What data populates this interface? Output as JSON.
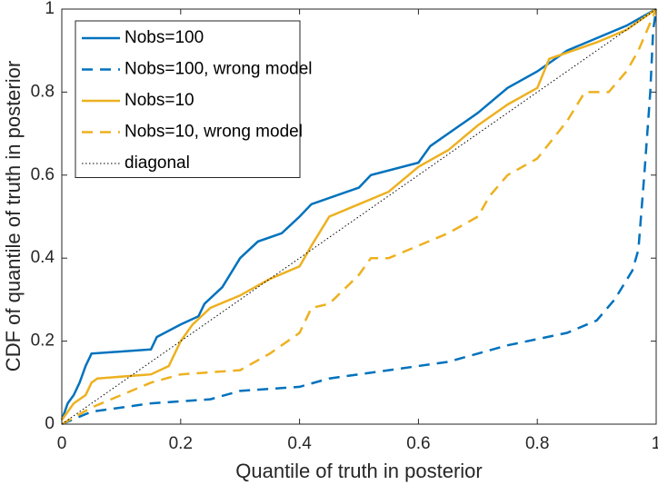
{
  "chart_data": {
    "type": "line",
    "xlabel": "Quantile of truth in posterior",
    "ylabel": "CDF of quantile of truth in posterior",
    "xlim": [
      0,
      1
    ],
    "ylim": [
      0,
      1
    ],
    "xticks": [
      0,
      0.2,
      0.4,
      0.6,
      0.8,
      1
    ],
    "yticks": [
      0,
      0.2,
      0.4,
      0.6,
      0.8,
      1
    ],
    "legend": "upper left",
    "series": [
      {
        "name": "Nobs=100",
        "color": "#0072bd",
        "dash": "solid",
        "x": [
          0,
          0.01,
          0.02,
          0.03,
          0.04,
          0.05,
          0.15,
          0.16,
          0.2,
          0.23,
          0.24,
          0.27,
          0.3,
          0.33,
          0.37,
          0.4,
          0.42,
          0.5,
          0.52,
          0.6,
          0.62,
          0.7,
          0.75,
          0.8,
          0.85,
          0.9,
          0.95,
          1
        ],
        "values": [
          0.01,
          0.05,
          0.07,
          0.1,
          0.14,
          0.17,
          0.18,
          0.21,
          0.24,
          0.26,
          0.29,
          0.33,
          0.4,
          0.44,
          0.46,
          0.5,
          0.53,
          0.57,
          0.6,
          0.63,
          0.67,
          0.75,
          0.81,
          0.85,
          0.9,
          0.93,
          0.96,
          1
        ]
      },
      {
        "name": "Nobs=100, wrong model",
        "color": "#0072bd",
        "dash": "dashed",
        "x": [
          0,
          0.05,
          0.15,
          0.25,
          0.3,
          0.4,
          0.45,
          0.55,
          0.65,
          0.7,
          0.75,
          0.85,
          0.9,
          0.93,
          0.96,
          0.97,
          0.98,
          0.99,
          0.995,
          1
        ],
        "values": [
          0,
          0.03,
          0.05,
          0.06,
          0.08,
          0.09,
          0.11,
          0.13,
          0.15,
          0.17,
          0.19,
          0.22,
          0.25,
          0.3,
          0.37,
          0.42,
          0.6,
          0.8,
          0.95,
          1
        ]
      },
      {
        "name": "Nobs=10",
        "color": "#edb120",
        "dash": "solid",
        "x": [
          0,
          0.02,
          0.04,
          0.05,
          0.06,
          0.15,
          0.18,
          0.2,
          0.22,
          0.25,
          0.3,
          0.35,
          0.4,
          0.42,
          0.45,
          0.5,
          0.55,
          0.6,
          0.65,
          0.7,
          0.75,
          0.8,
          0.82,
          0.9,
          0.95,
          1
        ],
        "values": [
          0.01,
          0.05,
          0.07,
          0.1,
          0.11,
          0.12,
          0.14,
          0.2,
          0.24,
          0.28,
          0.31,
          0.35,
          0.38,
          0.43,
          0.5,
          0.53,
          0.56,
          0.62,
          0.66,
          0.72,
          0.77,
          0.81,
          0.88,
          0.92,
          0.95,
          1
        ]
      },
      {
        "name": "Nobs=10, wrong model",
        "color": "#edb120",
        "dash": "dashed",
        "x": [
          0,
          0.05,
          0.1,
          0.15,
          0.2,
          0.3,
          0.35,
          0.4,
          0.42,
          0.45,
          0.5,
          0.52,
          0.55,
          0.6,
          0.65,
          0.7,
          0.72,
          0.75,
          0.8,
          0.85,
          0.88,
          0.92,
          0.95,
          0.97,
          1
        ],
        "values": [
          0,
          0.04,
          0.07,
          0.1,
          0.12,
          0.13,
          0.17,
          0.22,
          0.28,
          0.29,
          0.36,
          0.4,
          0.4,
          0.43,
          0.46,
          0.5,
          0.55,
          0.6,
          0.64,
          0.73,
          0.8,
          0.8,
          0.85,
          0.9,
          1
        ]
      },
      {
        "name": "diagonal",
        "color": "#000000",
        "dash": "dotted",
        "x": [
          0,
          1
        ],
        "values": [
          0,
          1
        ]
      }
    ]
  }
}
